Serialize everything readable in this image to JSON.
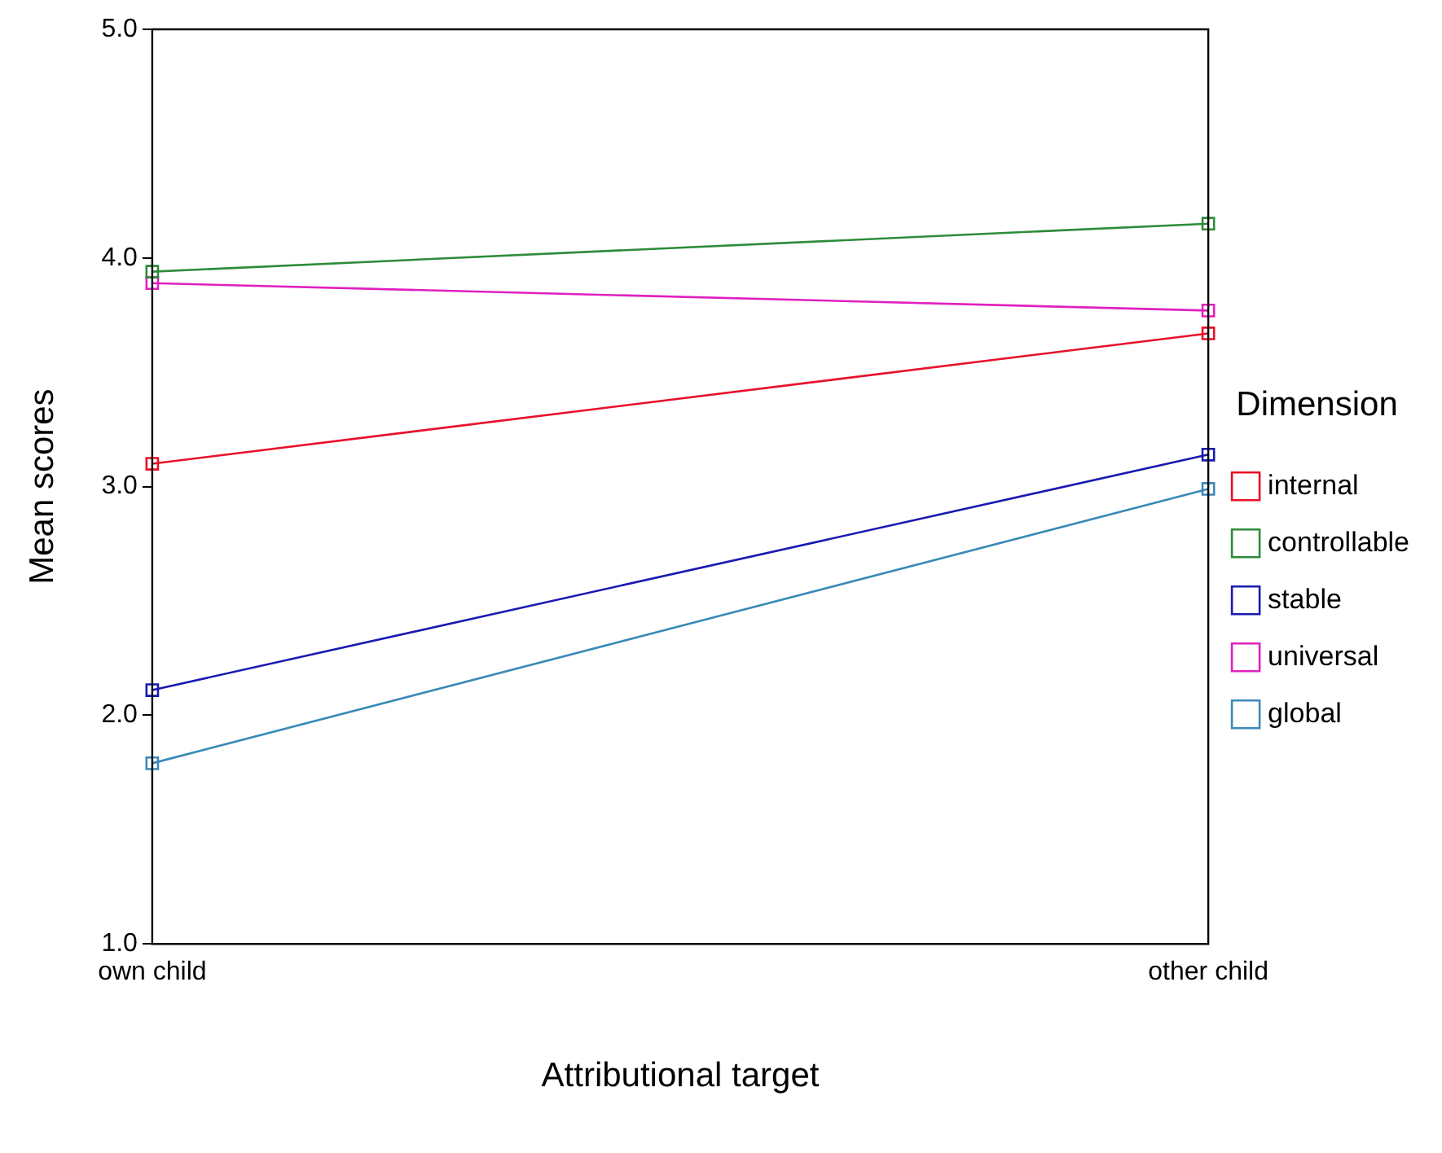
{
  "chart_data": {
    "type": "line",
    "xlabel": "Attributional target",
    "ylabel": "Mean scores",
    "legend_title": "Dimension",
    "categories": [
      "own child",
      "other child"
    ],
    "series": [
      {
        "name": "internal",
        "color": "#e8102a",
        "values": [
          3.1,
          3.67
        ]
      },
      {
        "name": "controllable",
        "color": "#2e8b3a",
        "values": [
          3.94,
          4.15
        ]
      },
      {
        "name": "stable",
        "color": "#1a1ab0",
        "values": [
          2.11,
          3.14
        ]
      },
      {
        "name": "universal",
        "color": "#e020c0",
        "values": [
          3.89,
          3.77
        ]
      },
      {
        "name": "global",
        "color": "#3a8ab8",
        "values": [
          1.79,
          2.99
        ]
      }
    ],
    "ylim": [
      1,
      5
    ],
    "yticks": [
      {
        "value": 1,
        "label": "1.0"
      },
      {
        "value": 2,
        "label": "2.0"
      },
      {
        "value": 3,
        "label": "3.0"
      },
      {
        "value": 4,
        "label": "4.0"
      },
      {
        "value": 5,
        "label": "5.0"
      }
    ],
    "grid": false,
    "legend": "right",
    "marker": "square",
    "line_style": "solid"
  }
}
